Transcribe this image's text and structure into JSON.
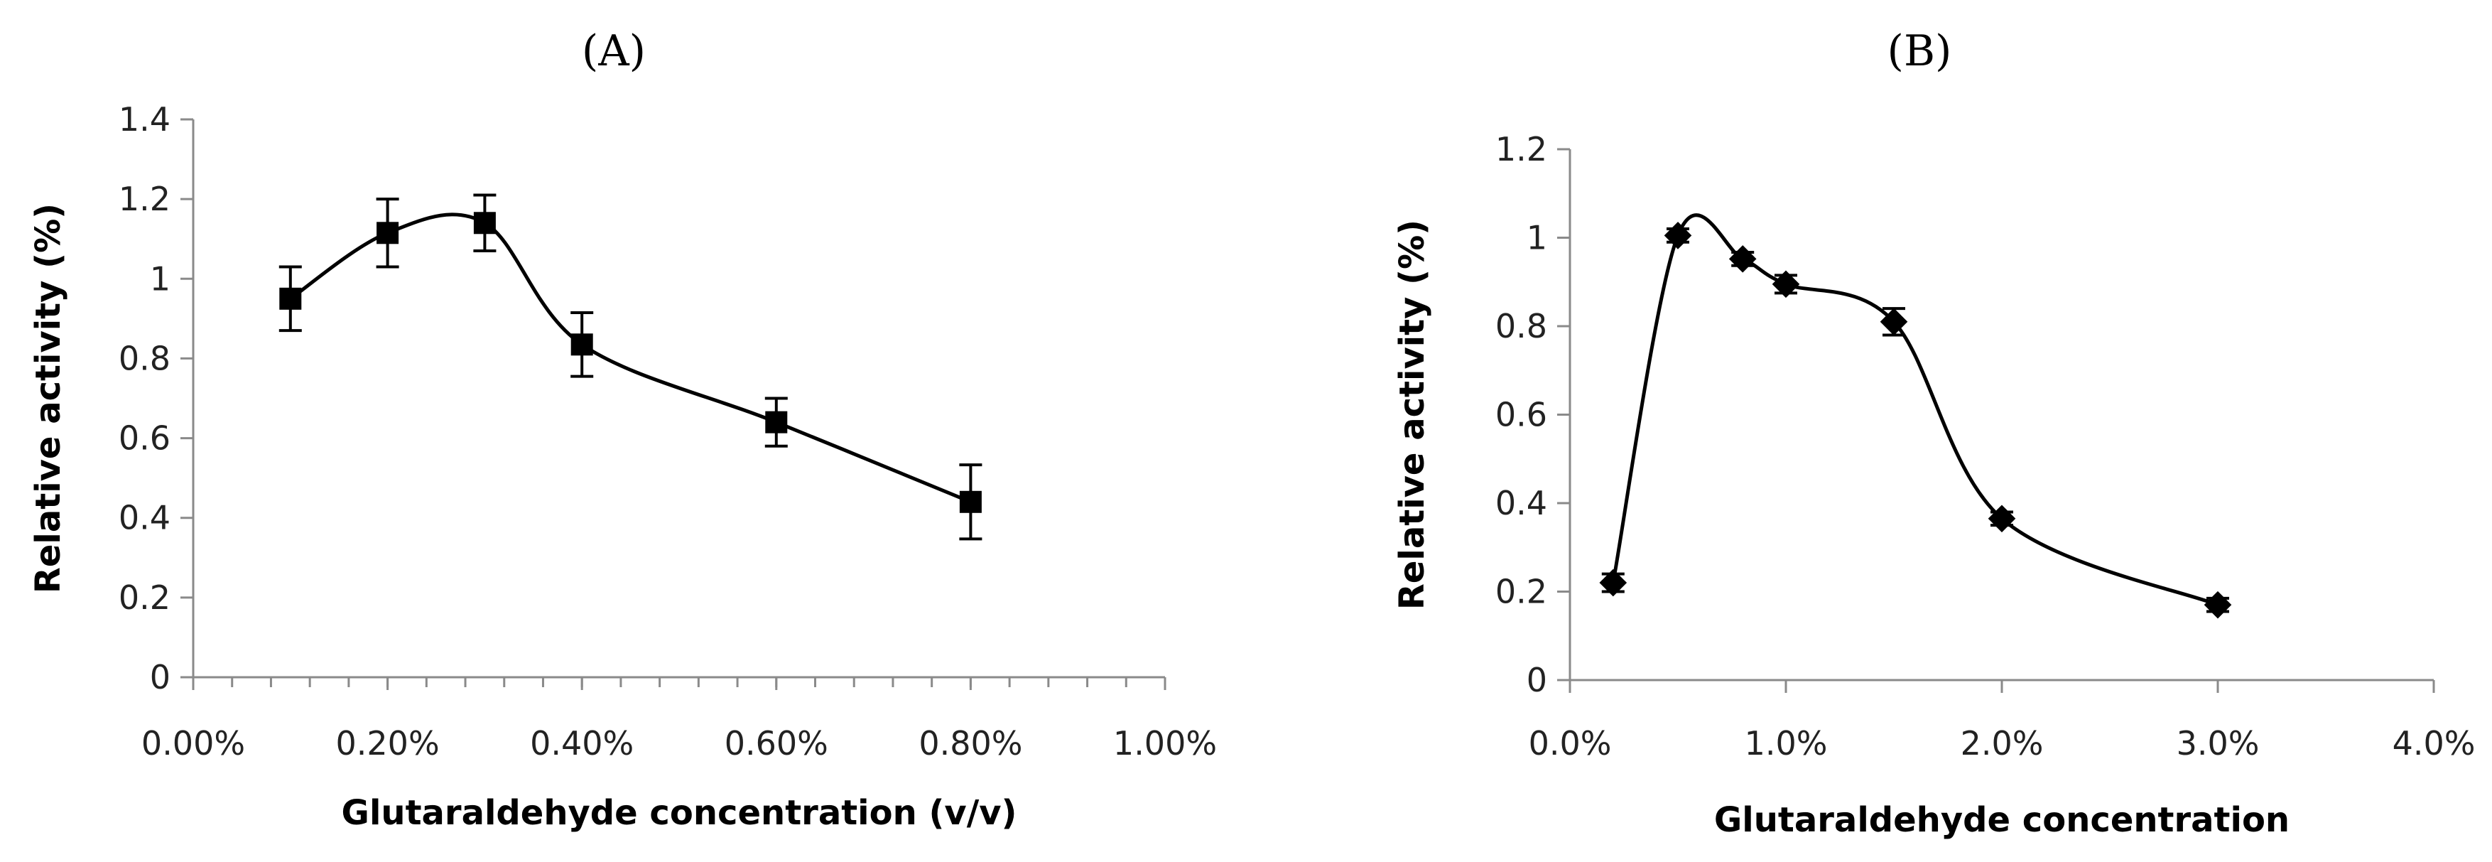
{
  "chart_data": [
    {
      "type": "line",
      "panel_label": "(A)",
      "title": "",
      "xlabel": "Glutaraldehyde concentration (v/v)",
      "ylabel": "Relative activity (%)",
      "xlim": [
        0,
        1.0
      ],
      "ylim": [
        0,
        1.4
      ],
      "x_ticks": [
        0,
        0.2,
        0.4,
        0.6,
        0.8,
        1.0
      ],
      "x_tick_labels": [
        "0.00%",
        "0.20%",
        "0.40%",
        "0.60%",
        "0.80%",
        "1.00%"
      ],
      "x_minor_step": 0.04,
      "y_ticks": [
        0,
        0.2,
        0.4,
        0.6,
        0.8,
        1,
        1.2,
        1.4
      ],
      "y_tick_labels": [
        "0",
        "0.2",
        "0.4",
        "0.6",
        "0.8",
        "1",
        "1.2",
        "1.4"
      ],
      "marker": "square",
      "grid": false,
      "series": [
        {
          "name": "Relative activity",
          "x": [
            0.1,
            0.2,
            0.3,
            0.4,
            0.6,
            0.8
          ],
          "values": [
            0.95,
            1.115,
            1.14,
            0.835,
            0.64,
            0.44
          ],
          "error": [
            0.08,
            0.085,
            0.07,
            0.08,
            0.06,
            0.093
          ]
        }
      ]
    },
    {
      "type": "line",
      "panel_label": "(B)",
      "title": "",
      "xlabel": "Glutaraldehyde concentration",
      "ylabel": "Relative activity (%)",
      "xlim": [
        0,
        4.0
      ],
      "ylim": [
        0,
        1.2
      ],
      "x_ticks": [
        0,
        1,
        2,
        3,
        4
      ],
      "x_tick_labels": [
        "0.0%",
        "1.0%",
        "2.0%",
        "3.0%",
        "4.0%"
      ],
      "x_minor_step": null,
      "y_ticks": [
        0,
        0.2,
        0.4,
        0.6,
        0.8,
        1,
        1.2
      ],
      "y_tick_labels": [
        "0",
        "0.2",
        "0.4",
        "0.6",
        "0.8",
        "1",
        "1.2"
      ],
      "marker": "diamond",
      "grid": false,
      "series": [
        {
          "name": "Relative activity",
          "x": [
            0.2,
            0.5,
            0.8,
            1.0,
            1.5,
            2.0,
            3.0
          ],
          "values": [
            0.22,
            1.005,
            0.952,
            0.895,
            0.81,
            0.365,
            0.17
          ],
          "error": [
            0.02,
            0.015,
            0.015,
            0.02,
            0.03,
            0.015,
            0.015
          ]
        }
      ]
    }
  ]
}
